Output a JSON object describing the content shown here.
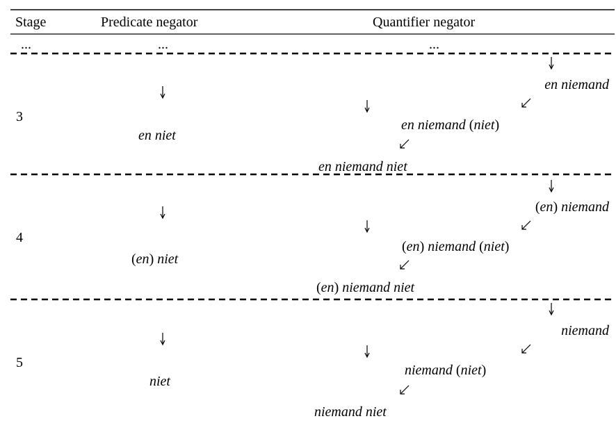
{
  "table": {
    "header": [
      "Stage",
      "Predicate negator",
      "Quantifier negator"
    ],
    "ellipsis": [
      "...",
      "...",
      "..."
    ],
    "stages": [
      {
        "stage": "3",
        "predicate": "en niet",
        "quantifier": [
          "en niemand",
          "en niemand (niet)",
          "en niemand niet"
        ]
      },
      {
        "stage": "4",
        "predicate": "(en) niet",
        "quantifier": [
          "(en) niemand",
          "(en) niemand (niet)",
          "(en) niemand niet"
        ]
      },
      {
        "stage": "5",
        "predicate": "niet",
        "quantifier": [
          "niemand",
          "niemand (niet)",
          "niemand niet"
        ]
      }
    ]
  }
}
